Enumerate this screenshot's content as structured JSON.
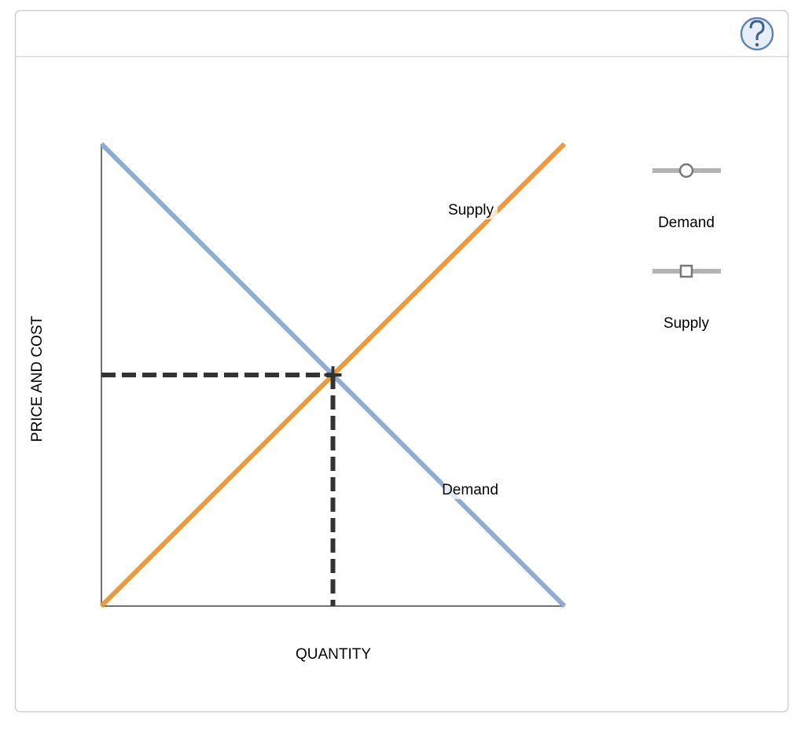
{
  "chart_data": {
    "type": "line",
    "x_label": "QUANTITY",
    "y_label": "PRICE AND COST",
    "x": [
      0,
      10
    ],
    "series": [
      {
        "name": "Demand",
        "color": "#8eadd4",
        "marker": "circle",
        "values": [
          10,
          0
        ]
      },
      {
        "name": "Supply",
        "color": "#f0993a",
        "marker": "square",
        "values": [
          0,
          10
        ]
      }
    ],
    "equilibrium": {
      "x": 5,
      "y": 5
    },
    "xlim": [
      0,
      10
    ],
    "ylim": [
      0,
      10
    ]
  }
}
